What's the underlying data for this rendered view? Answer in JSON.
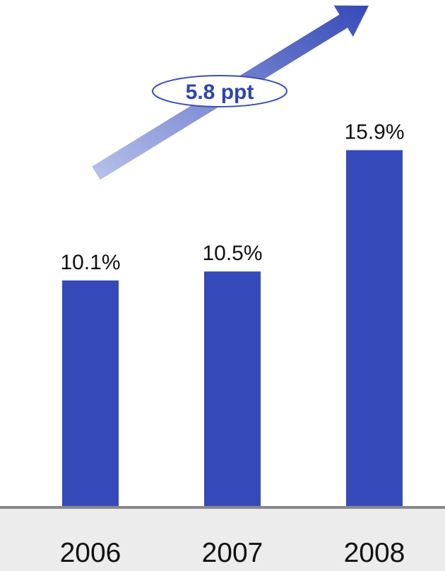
{
  "chart_data": {
    "type": "bar",
    "categories": [
      "2006",
      "2007",
      "2008"
    ],
    "values": [
      10.1,
      10.5,
      15.9
    ],
    "value_labels": [
      "10.1%",
      "10.5%",
      "15.9%"
    ],
    "unit": "%",
    "ylim": [
      0,
      19.5
    ],
    "grid": false,
    "legend": "none",
    "annotation": {
      "text": "5.8 ppt",
      "type": "trend-arrow"
    },
    "colors": {
      "bar": "#354ab8",
      "arrow_start": "#b9c2ea",
      "arrow_end": "#354ab8",
      "annotation_text": "#2f43b0",
      "annotation_border": "#3c4fb8",
      "axis_line": "#888888",
      "axis_band": "#ececec",
      "text": "#111111"
    }
  }
}
